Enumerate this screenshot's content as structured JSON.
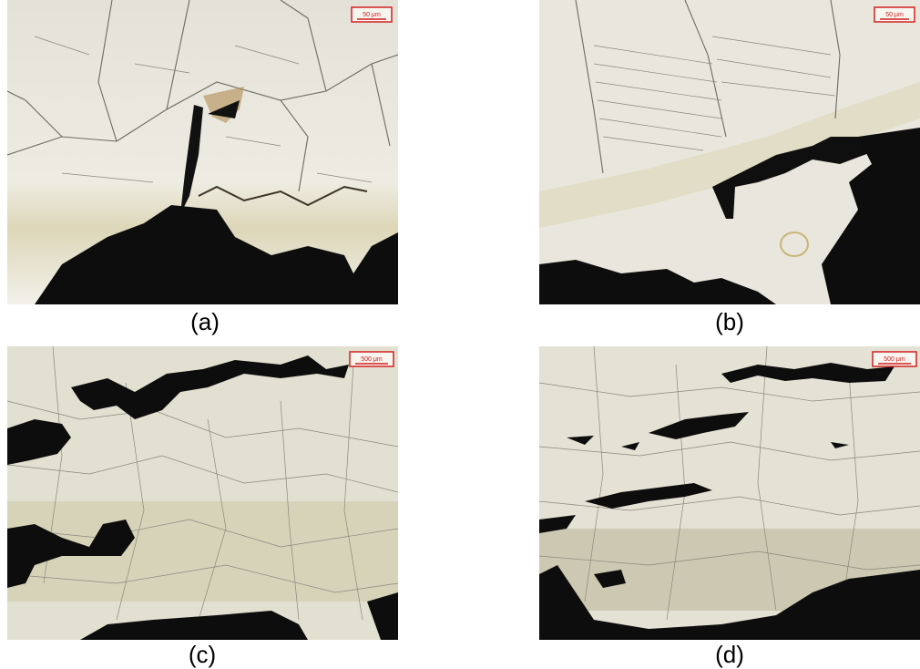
{
  "panels": [
    {
      "label": "(a)",
      "scale_bar": "50 μm"
    },
    {
      "label": "(b)",
      "scale_bar": "50 μm"
    },
    {
      "label": "(c)",
      "scale_bar": "500 μm"
    },
    {
      "label": "(d)",
      "scale_bar": "500 μm"
    }
  ]
}
